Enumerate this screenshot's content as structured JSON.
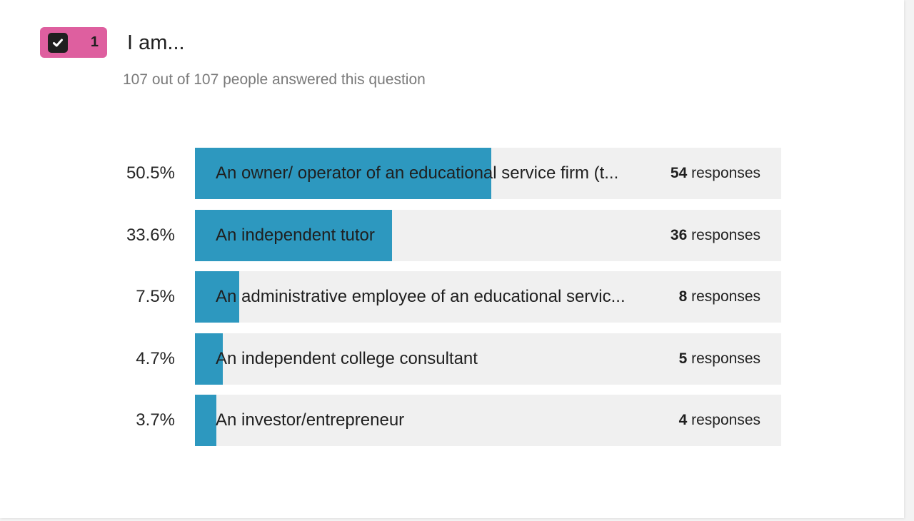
{
  "question": {
    "number": "1",
    "title": "I am...",
    "answered": "107 out of 107 people answered this question",
    "badge_color": "#de5f9f",
    "icon": "checkbox-icon"
  },
  "chart_data": {
    "type": "bar",
    "orientation": "horizontal",
    "bar_color": "#2d98bf",
    "track_color": "#f0f0f0",
    "categories": [
      "An owner/ operator of an educational service firm (t...",
      "An independent tutor",
      "An administrative employee of an educational servic...",
      "An independent college consultant",
      "An investor/entrepreneur"
    ],
    "values": [
      54,
      36,
      8,
      5,
      4
    ],
    "percent_labels": [
      "50.5%",
      "33.6%",
      "7.5%",
      "4.7%",
      "3.7%"
    ],
    "percent_values": [
      50.5,
      33.6,
      7.5,
      4.7,
      3.7
    ],
    "response_unit": "responses",
    "xlim": [
      0,
      100
    ]
  }
}
